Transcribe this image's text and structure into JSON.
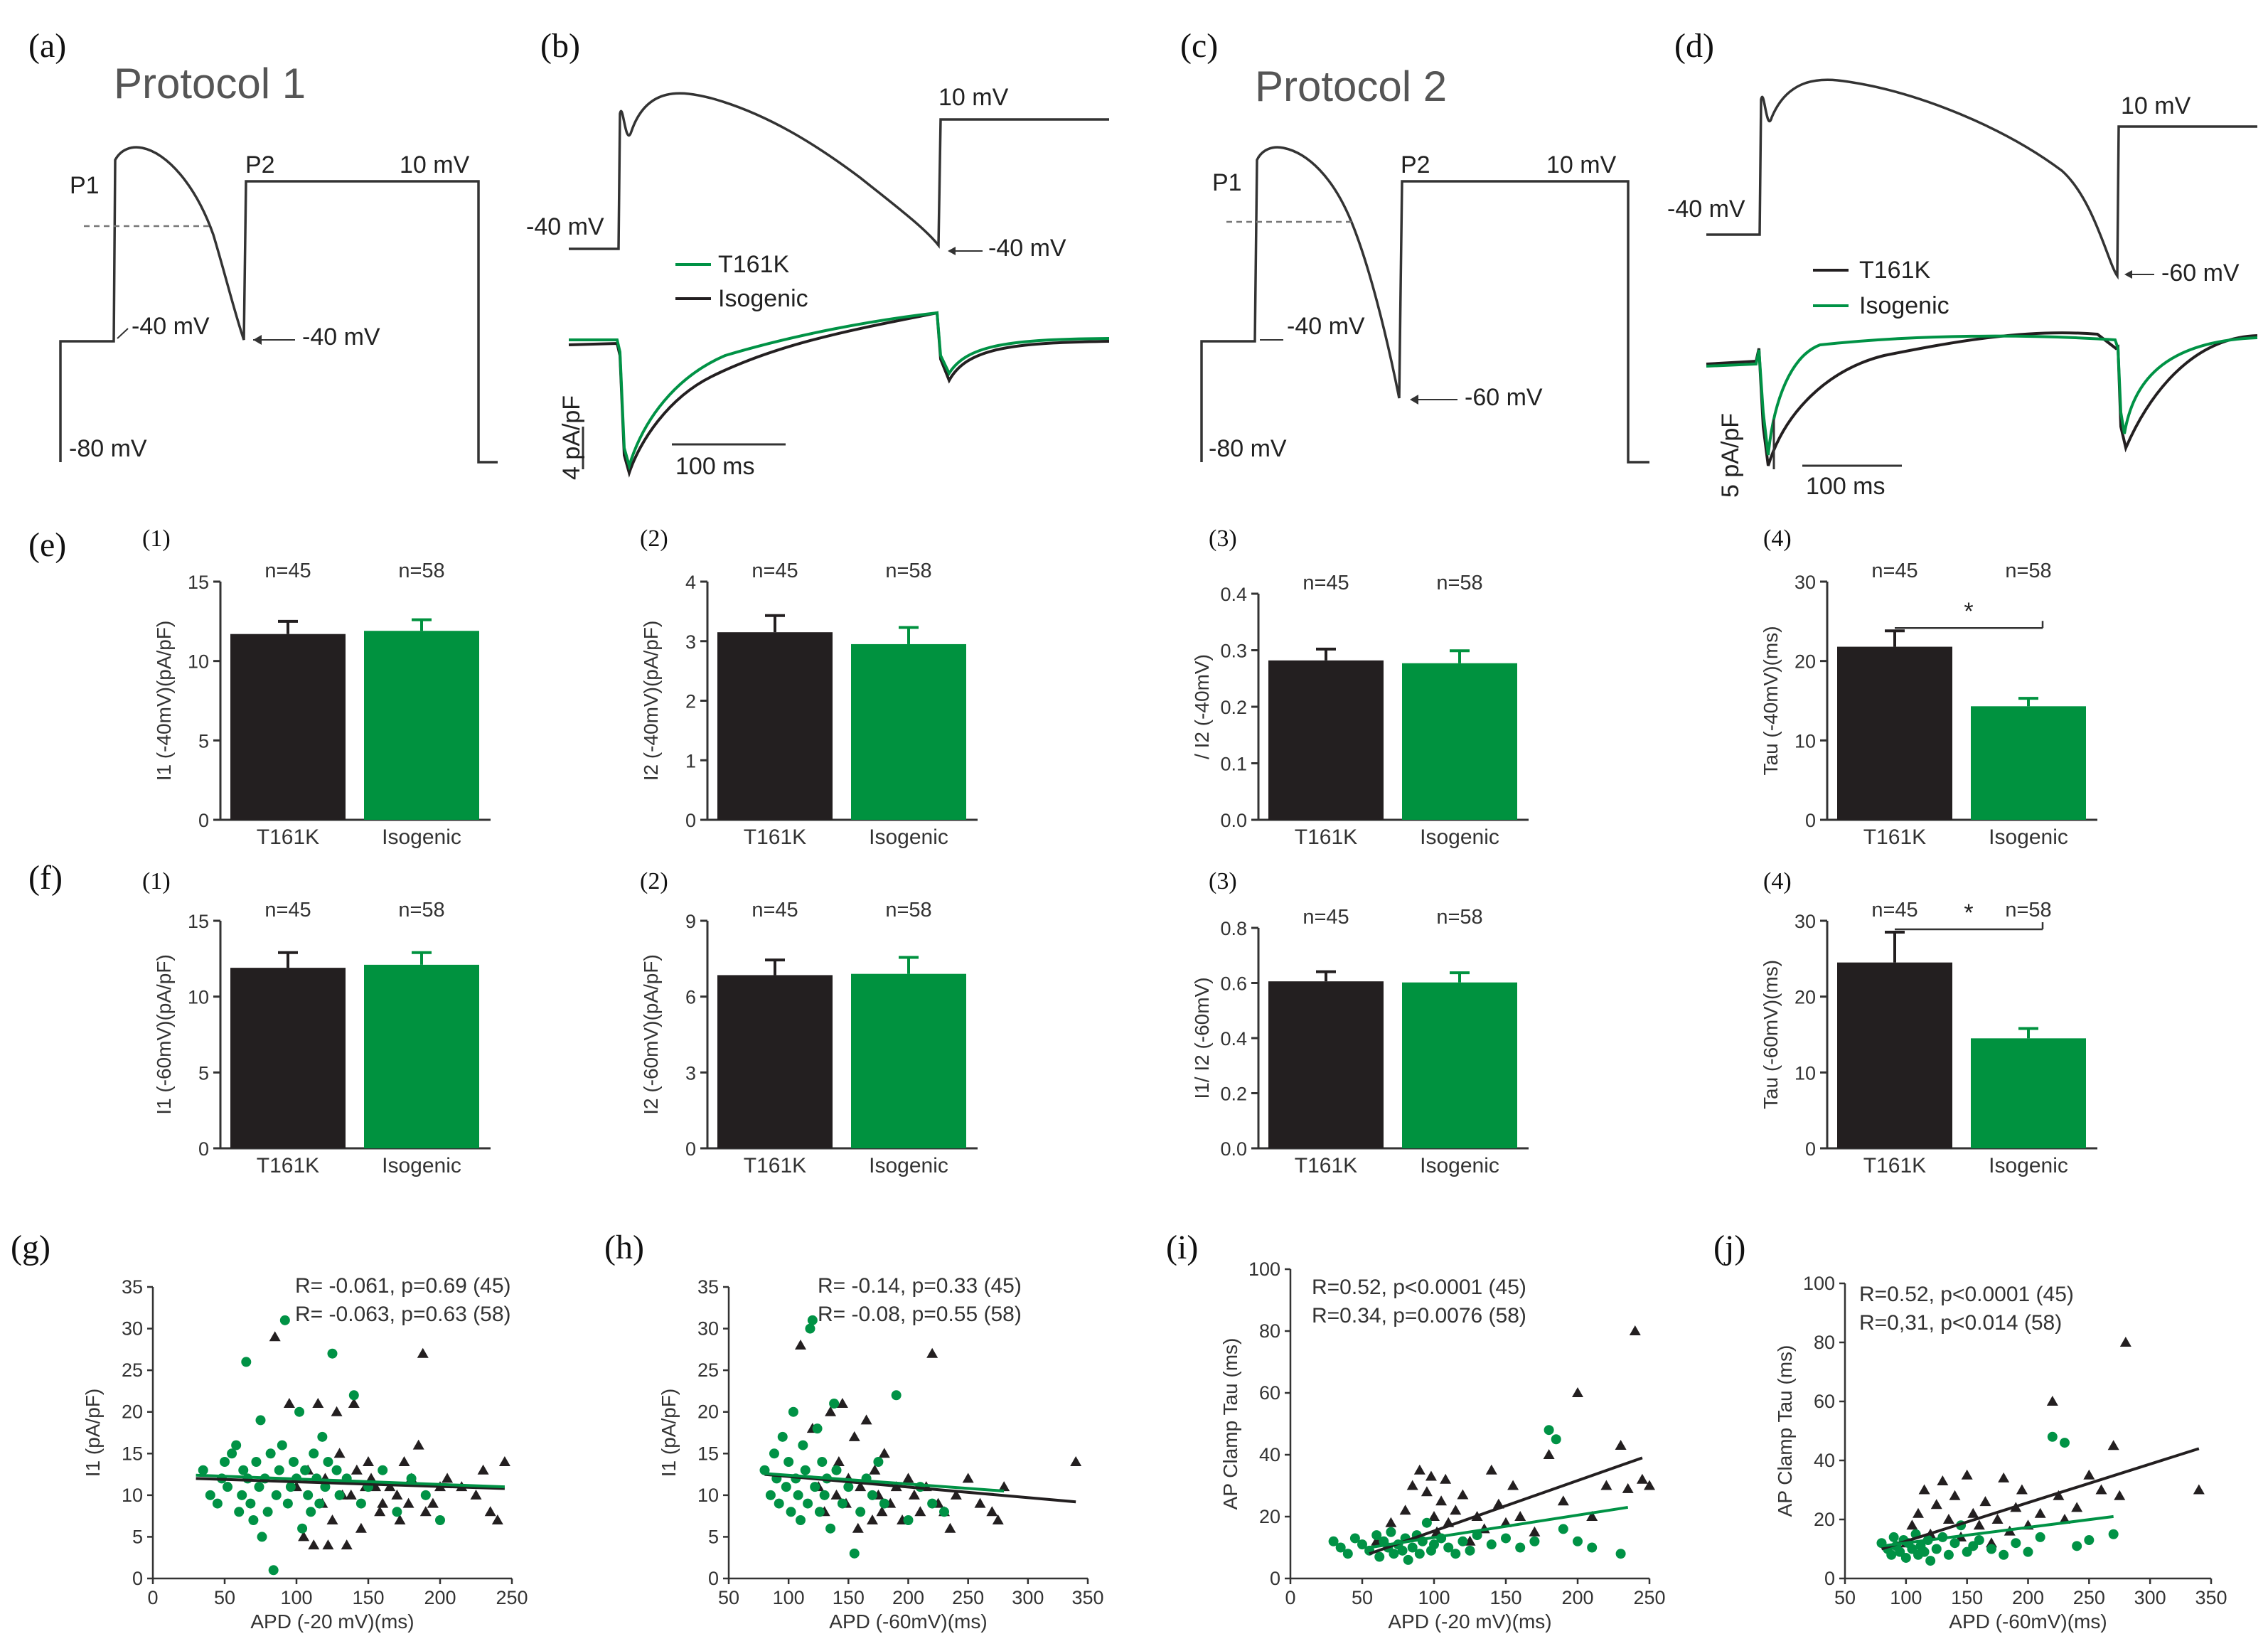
{
  "colors": {
    "t161k": "#231f20",
    "isogenic": "#009245",
    "isogenic_bar": "#00923f",
    "axis": "#333333",
    "teal": "#00a088"
  },
  "panels": {
    "a": {
      "label": "(a)",
      "title": "Protocol 1",
      "v_top": "10 mV",
      "p1": "P1",
      "p2": "P2",
      "v_m40a": "-40 mV",
      "v_m40b": "-40 mV",
      "v_m80": "-80 mV"
    },
    "b": {
      "label": "(b)",
      "v_top": "10 mV",
      "v_left": "-40 mV",
      "v_arrow": "-40 mV",
      "legend": [
        "T161K",
        "Isogenic"
      ],
      "scale_y": "4 pA/pF",
      "scale_x": "100 ms"
    },
    "c": {
      "label": "(c)",
      "title": "Protocol 2",
      "v_top": "10 mV",
      "p1": "P1",
      "p2": "P2",
      "v_m40": "-40 mV",
      "v_m60": "-60 mV",
      "v_m80": "-80 mV"
    },
    "d": {
      "label": "(d)",
      "v_top": "10 mV",
      "v_left": "-40 mV",
      "v_arrow": "-60 mV",
      "legend": [
        "T161K",
        "Isogenic"
      ],
      "scale_y": "5 pA/pF",
      "scale_x": "100 ms"
    },
    "e": {
      "label": "(e)"
    },
    "f": {
      "label": "(f)"
    },
    "g": {
      "label": "(g)"
    },
    "h": {
      "label": "(h)"
    },
    "i": {
      "label": "(i)"
    },
    "j": {
      "label": "(j)"
    }
  },
  "chart_data": [
    {
      "id": "e1",
      "type": "bar",
      "sub": "(1)",
      "ylabel": "I1 (-40mV)(pA/pF)",
      "ylim": [
        0,
        15
      ],
      "yticks": [
        "0",
        "5",
        "10",
        "15"
      ],
      "categories": [
        "T161K",
        "Isogenic"
      ],
      "values": [
        11.7,
        11.9
      ],
      "errors": [
        0.8,
        0.7
      ],
      "n": [
        "n=45",
        "n=58"
      ]
    },
    {
      "id": "e2",
      "type": "bar",
      "sub": "(2)",
      "ylabel": "I2 (-40mV)(pA/pF)",
      "ylim": [
        0,
        4
      ],
      "yticks": [
        "0",
        "1",
        "2",
        "3",
        "4"
      ],
      "categories": [
        "T161K",
        "Isogenic"
      ],
      "values": [
        3.15,
        2.95
      ],
      "errors": [
        0.28,
        0.28
      ],
      "n": [
        "n=45",
        "n=58"
      ]
    },
    {
      "id": "e3",
      "type": "bar",
      "sub": "(3)",
      "ylabel": "/ I2 (-40mV)",
      "ylim": [
        0,
        0.4
      ],
      "yticks": [
        "0.0",
        "0.1",
        "0.2",
        "0.3",
        "0.4"
      ],
      "categories": [
        "T161K",
        "Isogenic"
      ],
      "values": [
        0.282,
        0.277
      ],
      "errors": [
        0.02,
        0.022
      ],
      "n": [
        "n=45",
        "n=58"
      ]
    },
    {
      "id": "e4",
      "type": "bar",
      "sub": "(4)",
      "ylabel": "Tau (-40mV)(ms)",
      "ylim": [
        0,
        30
      ],
      "yticks": [
        "0",
        "10",
        "20",
        "30"
      ],
      "categories": [
        "T161K",
        "Isogenic"
      ],
      "values": [
        21.8,
        14.3
      ],
      "errors": [
        2.0,
        1.0
      ],
      "n": [
        "n=45",
        "n=58"
      ],
      "sig": "*"
    },
    {
      "id": "f1",
      "type": "bar",
      "sub": "(1)",
      "ylabel": "I1 (-60mV)(pA/pF)",
      "ylim": [
        0,
        15
      ],
      "yticks": [
        "0",
        "5",
        "10",
        "15"
      ],
      "categories": [
        "T161K",
        "Isogenic"
      ],
      "values": [
        11.9,
        12.1
      ],
      "errors": [
        1.0,
        0.8
      ],
      "n": [
        "n=45",
        "n=58"
      ]
    },
    {
      "id": "f2",
      "type": "bar",
      "sub": "(2)",
      "ylabel": "I2 (-60mV)(pA/pF)",
      "ylim": [
        0,
        9
      ],
      "yticks": [
        "0",
        "3",
        "6",
        "9"
      ],
      "categories": [
        "T161K",
        "Isogenic"
      ],
      "values": [
        6.85,
        6.9
      ],
      "errors": [
        0.6,
        0.65
      ],
      "n": [
        "n=45",
        "n=58"
      ]
    },
    {
      "id": "f3",
      "type": "bar",
      "sub": "(3)",
      "ylabel": "I1/ I2 (-60mV)",
      "ylim": [
        0,
        0.8
      ],
      "yticks": [
        "0.0",
        "0.2",
        "0.4",
        "0.6",
        "0.8"
      ],
      "categories": [
        "T161K",
        "Isogenic"
      ],
      "values": [
        0.606,
        0.602
      ],
      "errors": [
        0.035,
        0.035
      ],
      "n": [
        "n=45",
        "n=58"
      ]
    },
    {
      "id": "f4",
      "type": "bar",
      "sub": "(4)",
      "ylabel": "Tau (-60mV)(ms)",
      "ylim": [
        0,
        30
      ],
      "yticks": [
        "0",
        "10",
        "20",
        "30"
      ],
      "categories": [
        "T161K",
        "Isogenic"
      ],
      "values": [
        24.5,
        14.5
      ],
      "errors": [
        4.0,
        1.3
      ],
      "n": [
        "n=45",
        "n=58"
      ],
      "sig": "*"
    },
    {
      "id": "g",
      "type": "scatter",
      "xlabel": "APD (-20 mV)(ms)",
      "ylabel": "I1 (pA/pF)",
      "xlim": [
        0,
        250
      ],
      "ylim": [
        0,
        35
      ],
      "xticks": [
        "0",
        "50",
        "100",
        "150",
        "200",
        "250"
      ],
      "yticks": [
        "0",
        "5",
        "10",
        "15",
        "20",
        "25",
        "30",
        "35"
      ],
      "stats": [
        "R= -0.061, p=0.69 (45)",
        "R= -0.063, p=0.63 (58)"
      ],
      "fits": [
        {
          "x": [
            30,
            245
          ],
          "y": [
            12.0,
            10.8
          ]
        },
        {
          "x": [
            30,
            245
          ],
          "y": [
            12.4,
            11.0
          ]
        }
      ],
      "series": [
        {
          "name": "T161K",
          "marker": "triangle",
          "x": [
            85,
            95,
            100,
            105,
            108,
            112,
            115,
            118,
            120,
            122,
            125,
            128,
            130,
            132,
            135,
            138,
            140,
            142,
            145,
            148,
            150,
            152,
            155,
            158,
            160,
            165,
            170,
            172,
            175,
            178,
            180,
            185,
            188,
            190,
            195,
            200,
            205,
            215,
            225,
            230,
            235,
            240,
            245
          ],
          "y": [
            29,
            21,
            11,
            5,
            13,
            4,
            21,
            9,
            12,
            4,
            7,
            20,
            15,
            10,
            4,
            10,
            21,
            13,
            6,
            11,
            14,
            12,
            11,
            8,
            9,
            11,
            10,
            7,
            14,
            9,
            12,
            16,
            27,
            8,
            9,
            11,
            12,
            11,
            10,
            13,
            8,
            7,
            14
          ]
        },
        {
          "name": "Isogenic",
          "marker": "circle",
          "x": [
            35,
            40,
            45,
            48,
            50,
            52,
            55,
            58,
            60,
            62,
            63,
            65,
            66,
            68,
            70,
            72,
            74,
            75,
            76,
            78,
            80,
            82,
            84,
            86,
            88,
            90,
            92,
            94,
            96,
            98,
            100,
            102,
            104,
            106,
            108,
            110,
            112,
            114,
            116,
            118,
            120,
            122,
            125,
            128,
            130,
            135,
            140,
            145,
            150,
            160,
            170,
            180,
            190,
            200
          ],
          "y": [
            13,
            10,
            9,
            12,
            14,
            11,
            15,
            16,
            8,
            10,
            13,
            26,
            12,
            9,
            7,
            14,
            11,
            19,
            5,
            12,
            8,
            15,
            1,
            10,
            13,
            16,
            31,
            9,
            11,
            14,
            12,
            20,
            6,
            13,
            10,
            8,
            15,
            12,
            9,
            17,
            11,
            14,
            27,
            13,
            10,
            12,
            22,
            9,
            11,
            13,
            8,
            12,
            10,
            7
          ]
        }
      ]
    },
    {
      "id": "h",
      "type": "scatter",
      "xlabel": "APD (-60mV)(ms)",
      "ylabel": "I1 (pA/pF)",
      "xlim": [
        50,
        350
      ],
      "ylim": [
        0,
        35
      ],
      "xticks": [
        "50",
        "100",
        "150",
        "200",
        "250",
        "300",
        "350"
      ],
      "yticks": [
        "0",
        "5",
        "10",
        "15",
        "20",
        "25",
        "30",
        "35"
      ],
      "stats": [
        "R= -0.14, p=0.33 (45)",
        "R= -0.08, p=0.55 (58)"
      ],
      "fits": [
        {
          "x": [
            80,
            340
          ],
          "y": [
            12.5,
            9.2
          ]
        },
        {
          "x": [
            80,
            280
          ],
          "y": [
            12.6,
            10.5
          ]
        }
      ],
      "series": [
        {
          "name": "T161K",
          "marker": "triangle",
          "x": [
            110,
            120,
            125,
            130,
            135,
            140,
            142,
            145,
            148,
            150,
            155,
            158,
            160,
            165,
            170,
            172,
            175,
            178,
            180,
            185,
            190,
            195,
            200,
            205,
            210,
            215,
            220,
            225,
            230,
            235,
            240,
            250,
            260,
            270,
            275,
            280,
            340
          ],
          "y": [
            28,
            18,
            11,
            8,
            20,
            10,
            14,
            21,
            9,
            12,
            17,
            6,
            11,
            19,
            7,
            13,
            10,
            8,
            15,
            9,
            11,
            7,
            12,
            10,
            8,
            11,
            27,
            9,
            8,
            6,
            10,
            12,
            9,
            8,
            7,
            11,
            14
          ]
        },
        {
          "name": "Isogenic",
          "marker": "circle",
          "x": [
            80,
            85,
            88,
            90,
            92,
            95,
            98,
            100,
            102,
            104,
            106,
            108,
            110,
            112,
            114,
            116,
            118,
            120,
            122,
            124,
            126,
            128,
            130,
            132,
            135,
            138,
            140,
            145,
            150,
            155,
            160,
            165,
            170,
            175,
            180,
            190,
            200,
            210,
            220,
            230
          ],
          "y": [
            13,
            10,
            15,
            12,
            9,
            17,
            11,
            14,
            8,
            20,
            12,
            10,
            7,
            16,
            13,
            9,
            30,
            31,
            11,
            18,
            8,
            14,
            10,
            12,
            6,
            21,
            13,
            9,
            11,
            3,
            8,
            12,
            10,
            14,
            9,
            22,
            7,
            11,
            9,
            8
          ]
        }
      ]
    },
    {
      "id": "i",
      "type": "scatter",
      "xlabel": "APD (-20 mV)(ms)",
      "ylabel": "AP Clamp Tau (ms)",
      "xlim": [
        0,
        250
      ],
      "ylim": [
        0,
        100
      ],
      "xticks": [
        "0",
        "50",
        "100",
        "150",
        "200",
        "250"
      ],
      "yticks": [
        "0",
        "20",
        "40",
        "60",
        "80",
        "100"
      ],
      "stats": [
        "R=0.52, p<0.0001 (45)",
        "R=0.34, p=0.0076 (58)"
      ],
      "fits": [
        {
          "x": [
            55,
            245
          ],
          "y": [
            8,
            39
          ]
        },
        {
          "x": [
            55,
            235
          ],
          "y": [
            10,
            23
          ]
        }
      ],
      "series": [
        {
          "name": "T161K",
          "marker": "triangle",
          "x": [
            60,
            70,
            80,
            85,
            90,
            95,
            98,
            100,
            102,
            105,
            108,
            110,
            115,
            120,
            125,
            130,
            135,
            140,
            145,
            150,
            155,
            160,
            170,
            180,
            190,
            200,
            210,
            220,
            230,
            235,
            240,
            245,
            250
          ],
          "y": [
            12,
            18,
            22,
            30,
            35,
            28,
            33,
            20,
            15,
            25,
            32,
            18,
            22,
            27,
            12,
            20,
            16,
            35,
            24,
            18,
            30,
            20,
            15,
            40,
            25,
            60,
            20,
            30,
            43,
            29,
            80,
            32,
            30
          ]
        },
        {
          "name": "Isogenic",
          "marker": "circle",
          "x": [
            30,
            35,
            40,
            45,
            50,
            55,
            60,
            62,
            65,
            68,
            70,
            72,
            75,
            78,
            80,
            82,
            85,
            88,
            90,
            92,
            95,
            98,
            100,
            105,
            110,
            115,
            120,
            125,
            130,
            140,
            150,
            160,
            170,
            180,
            185,
            190,
            200,
            210,
            230
          ],
          "y": [
            12,
            10,
            8,
            13,
            11,
            9,
            14,
            7,
            12,
            10,
            15,
            8,
            11,
            9,
            13,
            6,
            10,
            14,
            8,
            12,
            18,
            9,
            11,
            13,
            10,
            8,
            12,
            9,
            14,
            11,
            13,
            10,
            12,
            48,
            45,
            16,
            12,
            10,
            8
          ]
        }
      ]
    },
    {
      "id": "j",
      "type": "scatter",
      "xlabel": "APD (-60mV)(ms)",
      "ylabel": "AP Clamp Tau (ms)",
      "xlim": [
        50,
        350
      ],
      "ylim": [
        0,
        100
      ],
      "xticks": [
        "50",
        "100",
        "150",
        "200",
        "250",
        "300",
        "350"
      ],
      "yticks": [
        "0",
        "20",
        "40",
        "60",
        "80",
        "100"
      ],
      "stats": [
        "R=0.52, p<0.0001 (45)",
        "R=0,31, p<0.014 (58)"
      ],
      "fits": [
        {
          "x": [
            80,
            340
          ],
          "y": [
            10,
            44
          ]
        },
        {
          "x": [
            80,
            270
          ],
          "y": [
            11,
            21
          ]
        }
      ],
      "series": [
        {
          "name": "T161K",
          "marker": "triangle",
          "x": [
            100,
            105,
            110,
            115,
            120,
            125,
            130,
            135,
            140,
            145,
            150,
            155,
            160,
            165,
            170,
            175,
            180,
            185,
            190,
            195,
            200,
            210,
            220,
            225,
            230,
            240,
            250,
            260,
            270,
            275,
            280,
            340
          ],
          "y": [
            12,
            18,
            22,
            30,
            15,
            25,
            33,
            20,
            28,
            14,
            35,
            22,
            18,
            26,
            12,
            20,
            34,
            16,
            24,
            30,
            18,
            22,
            60,
            28,
            20,
            24,
            35,
            30,
            45,
            28,
            80,
            30
          ]
        },
        {
          "name": "Isogenic",
          "marker": "circle",
          "x": [
            80,
            85,
            88,
            90,
            92,
            95,
            98,
            100,
            102,
            105,
            108,
            110,
            112,
            115,
            118,
            120,
            125,
            130,
            135,
            140,
            145,
            150,
            155,
            160,
            170,
            180,
            190,
            200,
            210,
            220,
            230,
            240,
            250,
            270
          ],
          "y": [
            12,
            10,
            8,
            14,
            11,
            9,
            13,
            7,
            12,
            10,
            15,
            8,
            11,
            9,
            13,
            6,
            10,
            14,
            8,
            12,
            18,
            9,
            11,
            13,
            10,
            8,
            12,
            9,
            14,
            48,
            46,
            11,
            13,
            15
          ]
        }
      ]
    }
  ]
}
